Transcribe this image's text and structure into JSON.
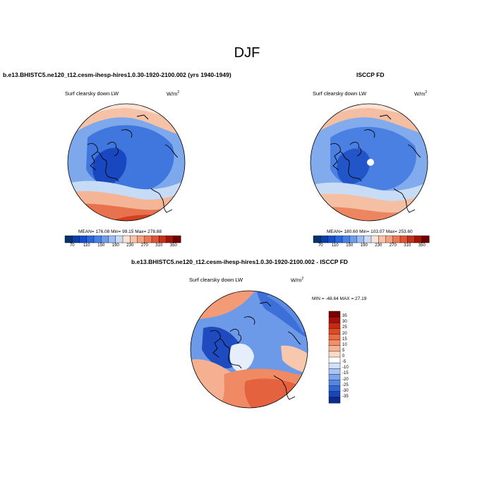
{
  "page": {
    "season": "DJF"
  },
  "panels": {
    "left": {
      "title": "b.e13.BHISTC5.ne120_t12.cesm-ihesp-hires1.0.30-1920-2100.002 (yrs 1940-1949)",
      "variable": "Surf clearsky down LW",
      "units_base": "W/m",
      "units_exp": "2",
      "stats": "MEAN= 176.08  Min=  99.15  Max= 278.88"
    },
    "right": {
      "title": "ISCCP FD",
      "variable": "Surf clearsky down LW",
      "units_base": "W/m",
      "units_exp": "2",
      "stats": "MEAN= 180.60  Min= 103.07  Max= 253.60"
    },
    "diff": {
      "title": "b.e13.BHISTC5.ne120_t12.cesm-ihesp-hires1.0.30-1920-2100.002 - ISCCP FD",
      "variable": "Surf clearsky down LW",
      "units_base": "W/m",
      "units_exp": "2",
      "stats": "MIN = -48.64 MAX =  27.19"
    }
  },
  "abs_colorbar": {
    "labels": [
      "70",
      "110",
      "150",
      "190",
      "230",
      "270",
      "310",
      "350"
    ],
    "colors": [
      "#08306b",
      "#0b3fa8",
      "#1450cc",
      "#2a66dd",
      "#4682e6",
      "#6b9ded",
      "#9dbcf2",
      "#c9dbf7",
      "#fbe4d6",
      "#f7c3a6",
      "#f2a07f",
      "#ea7a57",
      "#e05434",
      "#c7301a",
      "#a01508",
      "#6e0000"
    ]
  },
  "diff_colorbar": {
    "labels": [
      "35",
      "30",
      "25",
      "20",
      "15",
      "10",
      "5",
      "0",
      "-5",
      "-10",
      "-15",
      "-20",
      "-25",
      "-30",
      "-35"
    ],
    "colors": [
      "#7a0000",
      "#a50f0f",
      "#c62a12",
      "#dd4a25",
      "#ea6c43",
      "#f28f68",
      "#f6b393",
      "#fadac6",
      "#ffffff",
      "#d2e1fb",
      "#a9c5f4",
      "#7ea5ec",
      "#5486e2",
      "#2f66d6",
      "#1a47b8",
      "#0c2a8c"
    ]
  }
}
